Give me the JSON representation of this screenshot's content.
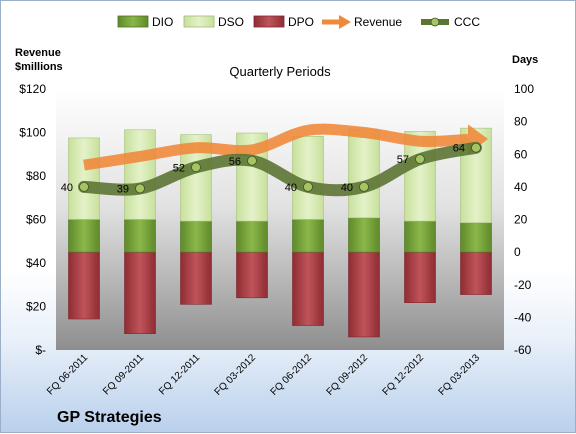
{
  "chart_data": {
    "type": "bar",
    "title": "Quarterly Periods",
    "company": "GP Strategies",
    "left_axis": {
      "title_lines": [
        "Revenue",
        "$millions"
      ],
      "range": [
        0,
        120
      ],
      "ticks": [
        0,
        20,
        40,
        60,
        80,
        100,
        120
      ],
      "tick_labels": [
        "$-",
        "$20",
        "$40",
        "$60",
        "$80",
        "$100",
        "$120"
      ]
    },
    "right_axis": {
      "title": "Days",
      "range": [
        -60,
        100
      ],
      "ticks": [
        -60,
        -40,
        -20,
        0,
        20,
        40,
        60,
        80,
        100
      ],
      "tick_labels": [
        "-60",
        "-40",
        "-20",
        "0",
        "20",
        "40",
        "60",
        "80",
        "100"
      ]
    },
    "categories": [
      "FQ 06-2011",
      "FQ 09-2011",
      "FQ 12-2011",
      "FQ 03-2012",
      "FQ 06-2012",
      "FQ 09-2012",
      "FQ 12-2012",
      "FQ 03-2013"
    ],
    "series": [
      {
        "name": "DIO",
        "kind": "stacked-bar",
        "axis": "right",
        "color": "#77a33a",
        "values": [
          20,
          20,
          19,
          19,
          20,
          21,
          19,
          18
        ]
      },
      {
        "name": "DSO",
        "kind": "stacked-bar",
        "axis": "right",
        "color": "#d6ebb0",
        "values": [
          50,
          55,
          53,
          54,
          51,
          54,
          55,
          58
        ]
      },
      {
        "name": "DPO",
        "kind": "stacked-bar-negative",
        "axis": "right",
        "color": "#b5434b",
        "values": [
          -41,
          -50,
          -32,
          -28,
          -45,
          -52,
          -31,
          -26
        ]
      },
      {
        "name": "Revenue",
        "kind": "line-arrow",
        "axis": "left",
        "color": "#ef8a3c",
        "values": [
          85,
          89,
          93,
          92,
          101,
          100,
          96,
          97
        ]
      },
      {
        "name": "CCC",
        "kind": "line",
        "axis": "right",
        "color": "#5c7434",
        "values": [
          40,
          39,
          52,
          56,
          40,
          40,
          57,
          64
        ],
        "data_labels": [
          "40",
          "39",
          "52",
          "56",
          "40",
          "40",
          "57",
          "64"
        ]
      }
    ],
    "legend": {
      "position": "top"
    },
    "grid": false
  }
}
